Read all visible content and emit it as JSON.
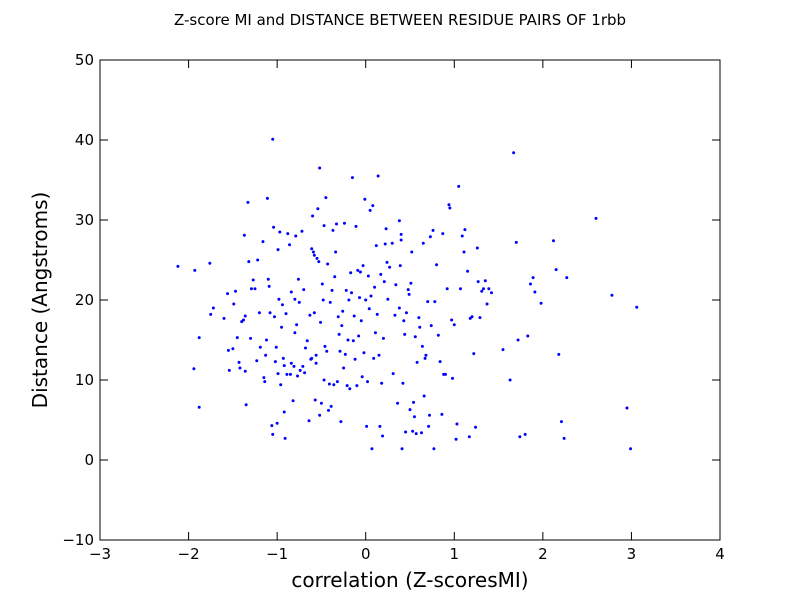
{
  "chart_data": {
    "type": "scatter",
    "title": "Z-score MI and DISTANCE BETWEEN RESIDUE PAIRS OF 1rbb",
    "xlabel": "correlation (Z-scoresMI)",
    "ylabel": "Distance (Angstroms)",
    "xlim": [
      -3,
      4
    ],
    "ylim": [
      -10,
      50
    ],
    "xticks": [
      -3,
      -2,
      -1,
      0,
      1,
      2,
      3,
      4
    ],
    "yticks": [
      -10,
      0,
      10,
      20,
      30,
      40,
      50
    ],
    "grid": false,
    "legend": "none",
    "marker_color": "#0000ff",
    "points": [
      [
        -2.12,
        24.2
      ],
      [
        -1.93,
        23.7
      ],
      [
        -1.94,
        11.4
      ],
      [
        -1.88,
        15.3
      ],
      [
        -1.88,
        6.6
      ],
      [
        -1.76,
        24.6
      ],
      [
        -1.75,
        18.2
      ],
      [
        -1.72,
        19.0
      ],
      [
        -1.6,
        17.7
      ],
      [
        -1.56,
        20.8
      ],
      [
        -1.55,
        13.7
      ],
      [
        -1.54,
        11.2
      ],
      [
        -1.5,
        13.9
      ],
      [
        -1.49,
        19.5
      ],
      [
        -1.47,
        21.1
      ],
      [
        -1.45,
        15.3
      ],
      [
        -1.43,
        12.2
      ],
      [
        -1.42,
        11.5
      ],
      [
        -1.4,
        17.3
      ],
      [
        -1.38,
        17.5
      ],
      [
        -1.37,
        28.1
      ],
      [
        -1.36,
        11.1
      ],
      [
        -1.36,
        18.0
      ],
      [
        -1.35,
        6.9
      ],
      [
        -1.33,
        32.2
      ],
      [
        -1.32,
        24.8
      ],
      [
        -1.3,
        15.2
      ],
      [
        -1.29,
        21.4
      ],
      [
        -1.27,
        22.5
      ],
      [
        -1.25,
        21.4
      ],
      [
        -1.23,
        12.4
      ],
      [
        -1.22,
        25.0
      ],
      [
        -1.2,
        18.4
      ],
      [
        -1.19,
        14.1
      ],
      [
        -1.16,
        27.3
      ],
      [
        -1.15,
        10.3
      ],
      [
        -1.14,
        9.8
      ],
      [
        -1.13,
        13.1
      ],
      [
        -1.12,
        15.0
      ],
      [
        -1.11,
        32.7
      ],
      [
        -1.1,
        22.6
      ],
      [
        -1.09,
        21.7
      ],
      [
        -1.08,
        18.4
      ],
      [
        -1.06,
        4.3
      ],
      [
        -1.05,
        3.2
      ],
      [
        -1.05,
        40.1
      ],
      [
        -1.04,
        29.1
      ],
      [
        -1.03,
        17.9
      ],
      [
        -1.02,
        12.3
      ],
      [
        -1.01,
        14.1
      ],
      [
        -1.0,
        4.6
      ],
      [
        -0.99,
        10.8
      ],
      [
        -0.99,
        26.3
      ],
      [
        -0.98,
        20.1
      ],
      [
        -0.97,
        28.5
      ],
      [
        -0.96,
        9.4
      ],
      [
        -0.95,
        16.6
      ],
      [
        -0.94,
        19.4
      ],
      [
        -0.93,
        12.7
      ],
      [
        -0.92,
        6.0
      ],
      [
        -0.92,
        11.8
      ],
      [
        -0.91,
        2.7
      ],
      [
        -0.9,
        18.3
      ],
      [
        -0.89,
        10.7
      ],
      [
        -0.88,
        28.3
      ],
      [
        -0.86,
        26.9
      ],
      [
        -0.85,
        10.7
      ],
      [
        -0.84,
        12.1
      ],
      [
        -0.84,
        21.0
      ],
      [
        -0.82,
        7.4
      ],
      [
        -0.81,
        11.7
      ],
      [
        -0.8,
        15.9
      ],
      [
        -0.8,
        20.1
      ],
      [
        -0.79,
        28.0
      ],
      [
        -0.78,
        16.9
      ],
      [
        -0.77,
        10.5
      ],
      [
        -0.76,
        22.6
      ],
      [
        -0.75,
        19.7
      ],
      [
        -0.74,
        11.2
      ],
      [
        -0.72,
        28.6
      ],
      [
        -0.71,
        11.7
      ],
      [
        -0.7,
        21.3
      ],
      [
        -0.69,
        10.9
      ],
      [
        -0.68,
        14.0
      ],
      [
        -0.66,
        14.9
      ],
      [
        -0.64,
        4.9
      ],
      [
        -0.63,
        18.1
      ],
      [
        -0.62,
        12.6
      ],
      [
        -0.61,
        26.4
      ],
      [
        -0.61,
        12.7
      ],
      [
        -0.6,
        30.5
      ],
      [
        -0.59,
        26.0
      ],
      [
        -0.58,
        18.4
      ],
      [
        -0.58,
        25.6
      ],
      [
        -0.57,
        7.5
      ],
      [
        -0.56,
        13.1
      ],
      [
        -0.56,
        12.1
      ],
      [
        -0.55,
        25.2
      ],
      [
        -0.54,
        31.4
      ],
      [
        -0.53,
        24.8
      ],
      [
        -0.52,
        5.6
      ],
      [
        -0.52,
        36.5
      ],
      [
        -0.51,
        17.2
      ],
      [
        -0.5,
        7.1
      ],
      [
        -0.49,
        22.0
      ],
      [
        -0.48,
        20.0
      ],
      [
        -0.47,
        29.3
      ],
      [
        -0.47,
        10.0
      ],
      [
        -0.46,
        14.2
      ],
      [
        -0.45,
        32.8
      ],
      [
        -0.44,
        13.6
      ],
      [
        -0.43,
        24.5
      ],
      [
        -0.42,
        6.2
      ],
      [
        -0.41,
        9.5
      ],
      [
        -0.4,
        19.7
      ],
      [
        -0.39,
        6.7
      ],
      [
        -0.38,
        21.2
      ],
      [
        -0.37,
        28.7
      ],
      [
        -0.36,
        9.4
      ],
      [
        -0.35,
        22.9
      ],
      [
        -0.34,
        26.0
      ],
      [
        -0.33,
        29.5
      ],
      [
        -0.32,
        9.8
      ],
      [
        -0.31,
        17.9
      ],
      [
        -0.3,
        15.7
      ],
      [
        -0.29,
        13.6
      ],
      [
        -0.28,
        4.8
      ],
      [
        -0.27,
        16.8
      ],
      [
        -0.26,
        18.6
      ],
      [
        -0.25,
        11.5
      ],
      [
        -0.24,
        29.6
      ],
      [
        -0.23,
        13.2
      ],
      [
        -0.22,
        21.2
      ],
      [
        -0.21,
        9.3
      ],
      [
        -0.2,
        15.0
      ],
      [
        -0.19,
        20.0
      ],
      [
        -0.18,
        8.9
      ],
      [
        -0.17,
        23.4
      ],
      [
        -0.16,
        20.9
      ],
      [
        -0.15,
        35.3
      ],
      [
        -0.14,
        14.9
      ],
      [
        -0.13,
        18.0
      ],
      [
        -0.12,
        12.6
      ],
      [
        -0.11,
        29.2
      ],
      [
        -0.1,
        9.3
      ],
      [
        -0.09,
        23.7
      ],
      [
        -0.08,
        15.5
      ],
      [
        -0.07,
        20.3
      ],
      [
        -0.06,
        23.5
      ],
      [
        -0.05,
        17.4
      ],
      [
        -0.04,
        10.4
      ],
      [
        -0.03,
        24.3
      ],
      [
        -0.02,
        13.4
      ],
      [
        -0.01,
        32.6
      ],
      [
        0.0,
        20.0
      ],
      [
        0.01,
        4.2
      ],
      [
        0.02,
        9.8
      ],
      [
        0.03,
        23.0
      ],
      [
        0.04,
        18.9
      ],
      [
        0.05,
        31.2
      ],
      [
        0.06,
        20.5
      ],
      [
        0.07,
        1.4
      ],
      [
        0.08,
        31.8
      ],
      [
        0.09,
        12.7
      ],
      [
        0.1,
        21.6
      ],
      [
        0.11,
        15.9
      ],
      [
        0.12,
        26.8
      ],
      [
        0.13,
        18.2
      ],
      [
        0.14,
        35.5
      ],
      [
        0.15,
        13.1
      ],
      [
        0.16,
        4.2
      ],
      [
        0.17,
        23.2
      ],
      [
        0.18,
        9.6
      ],
      [
        0.19,
        3.0
      ],
      [
        0.2,
        15.2
      ],
      [
        0.21,
        22.3
      ],
      [
        0.22,
        27.0
      ],
      [
        0.23,
        28.9
      ],
      [
        0.24,
        24.7
      ],
      [
        0.25,
        20.1
      ],
      [
        0.27,
        24.1
      ],
      [
        0.3,
        27.1
      ],
      [
        0.31,
        10.8
      ],
      [
        0.33,
        18.1
      ],
      [
        0.34,
        21.9
      ],
      [
        0.36,
        7.1
      ],
      [
        0.38,
        29.9
      ],
      [
        0.38,
        19.0
      ],
      [
        0.39,
        24.3
      ],
      [
        0.4,
        28.2
      ],
      [
        0.4,
        27.5
      ],
      [
        0.41,
        1.4
      ],
      [
        0.42,
        9.6
      ],
      [
        0.43,
        17.4
      ],
      [
        0.44,
        15.7
      ],
      [
        0.45,
        3.5
      ],
      [
        0.46,
        18.4
      ],
      [
        0.48,
        21.3
      ],
      [
        0.49,
        20.7
      ],
      [
        0.5,
        6.3
      ],
      [
        0.51,
        22.1
      ],
      [
        0.52,
        26.0
      ],
      [
        0.53,
        3.6
      ],
      [
        0.54,
        7.2
      ],
      [
        0.55,
        5.4
      ],
      [
        0.56,
        15.4
      ],
      [
        0.57,
        3.3
      ],
      [
        0.58,
        12.2
      ],
      [
        0.6,
        17.8
      ],
      [
        0.61,
        16.6
      ],
      [
        0.63,
        3.4
      ],
      [
        0.64,
        14.2
      ],
      [
        0.65,
        27.1
      ],
      [
        0.66,
        8.0
      ],
      [
        0.67,
        12.7
      ],
      [
        0.68,
        13.1
      ],
      [
        0.7,
        19.8
      ],
      [
        0.71,
        4.2
      ],
      [
        0.72,
        5.6
      ],
      [
        0.73,
        27.9
      ],
      [
        0.74,
        16.8
      ],
      [
        0.76,
        28.7
      ],
      [
        0.77,
        1.4
      ],
      [
        0.78,
        19.8
      ],
      [
        0.8,
        24.4
      ],
      [
        0.82,
        15.6
      ],
      [
        0.84,
        12.3
      ],
      [
        0.86,
        5.7
      ],
      [
        0.87,
        28.3
      ],
      [
        0.88,
        10.7
      ],
      [
        0.9,
        10.7
      ],
      [
        0.92,
        21.4
      ],
      [
        0.94,
        31.9
      ],
      [
        0.95,
        31.5
      ],
      [
        0.97,
        17.5
      ],
      [
        0.98,
        10.2
      ],
      [
        1.0,
        16.9
      ],
      [
        1.02,
        2.6
      ],
      [
        1.03,
        4.5
      ],
      [
        1.05,
        34.2
      ],
      [
        1.07,
        21.4
      ],
      [
        1.09,
        28.0
      ],
      [
        1.11,
        26.0
      ],
      [
        1.12,
        28.8
      ],
      [
        1.15,
        23.6
      ],
      [
        1.17,
        2.9
      ],
      [
        1.18,
        17.7
      ],
      [
        1.2,
        17.9
      ],
      [
        1.22,
        13.3
      ],
      [
        1.24,
        4.1
      ],
      [
        1.26,
        26.5
      ],
      [
        1.27,
        22.3
      ],
      [
        1.29,
        17.8
      ],
      [
        1.31,
        21.1
      ],
      [
        1.33,
        21.4
      ],
      [
        1.35,
        22.4
      ],
      [
        1.37,
        19.5
      ],
      [
        1.39,
        21.4
      ],
      [
        1.42,
        20.9
      ],
      [
        1.55,
        13.8
      ],
      [
        1.63,
        10.0
      ],
      [
        1.67,
        38.4
      ],
      [
        1.7,
        27.2
      ],
      [
        1.72,
        15.0
      ],
      [
        1.74,
        2.9
      ],
      [
        1.8,
        3.2
      ],
      [
        1.83,
        15.5
      ],
      [
        1.86,
        22.0
      ],
      [
        1.89,
        22.8
      ],
      [
        1.91,
        21.0
      ],
      [
        1.98,
        19.6
      ],
      [
        2.12,
        27.4
      ],
      [
        2.15,
        23.8
      ],
      [
        2.18,
        13.2
      ],
      [
        2.21,
        4.8
      ],
      [
        2.24,
        2.7
      ],
      [
        2.27,
        22.8
      ],
      [
        2.6,
        30.2
      ],
      [
        2.78,
        20.6
      ],
      [
        2.95,
        6.5
      ],
      [
        2.99,
        1.4
      ],
      [
        3.06,
        19.1
      ]
    ]
  }
}
